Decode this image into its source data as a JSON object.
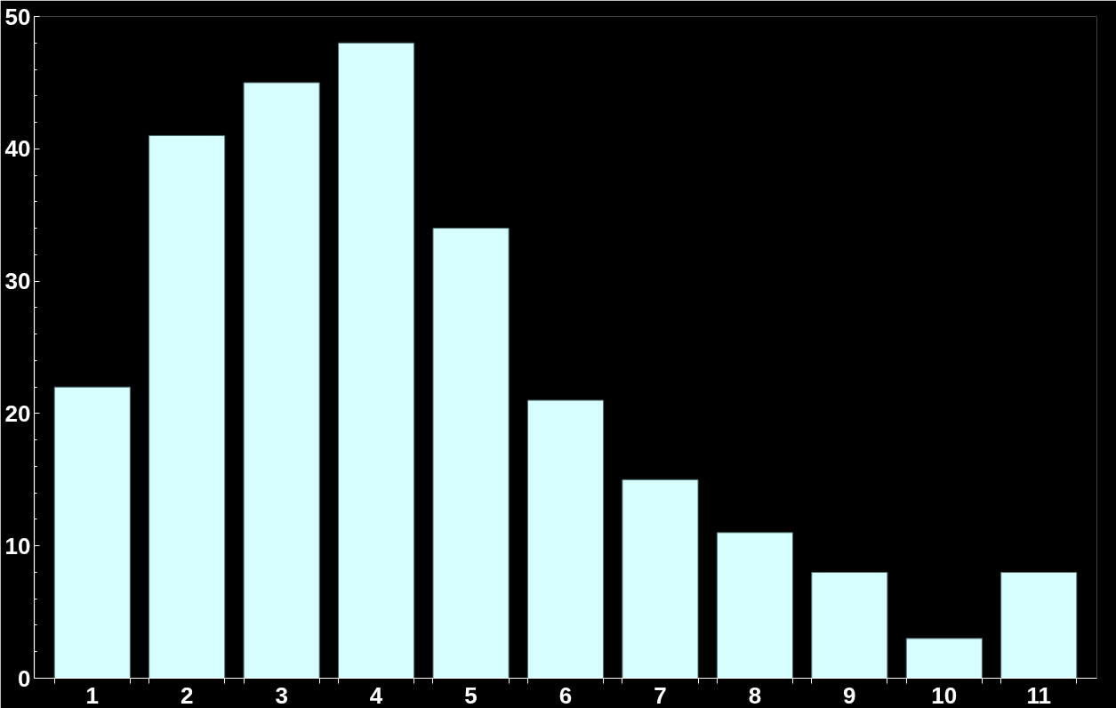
{
  "chart_data": {
    "type": "bar",
    "categories": [
      "1",
      "2",
      "3",
      "4",
      "5",
      "6",
      "7",
      "8",
      "9",
      "10",
      "11"
    ],
    "values": [
      22,
      41,
      45,
      48,
      34,
      21,
      15,
      11,
      8,
      3,
      8
    ],
    "color": "#d8ffff",
    "ylim": [
      0,
      50
    ],
    "yticks": [
      0,
      {
        "value": 2,
        "label": null
      },
      {
        "value": 4,
        "label": null
      },
      {
        "value": 6,
        "label": null
      },
      {
        "value": 8,
        "label": null
      },
      10,
      {
        "value": 12,
        "label": null
      },
      {
        "value": 14,
        "label": null
      },
      {
        "value": 16,
        "label": null
      },
      {
        "value": 18,
        "label": null
      },
      20,
      {
        "value": 22,
        "label": null
      },
      {
        "value": 24,
        "label": null
      },
      {
        "value": 26,
        "label": null
      },
      {
        "value": 28,
        "label": null
      },
      30,
      {
        "value": 32,
        "label": null
      },
      {
        "value": 34,
        "label": null
      },
      {
        "value": 36,
        "label": null
      },
      {
        "value": 38,
        "label": null
      },
      40,
      {
        "value": 42,
        "label": null
      },
      {
        "value": 44,
        "label": null
      },
      {
        "value": 46,
        "label": null
      },
      {
        "value": 48,
        "label": null
      },
      50
    ],
    "grid": false
  }
}
